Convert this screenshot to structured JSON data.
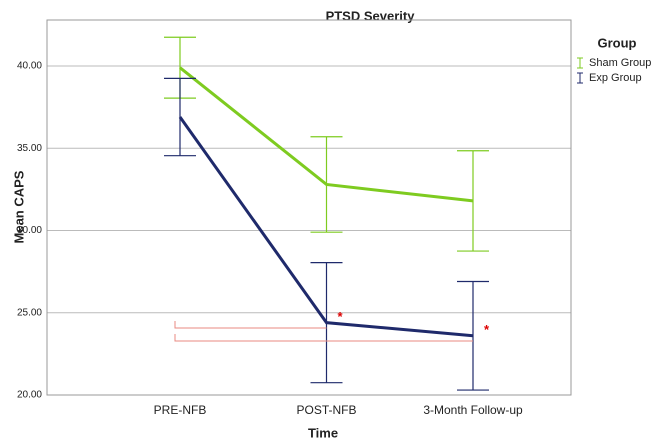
{
  "chart_data": {
    "type": "line",
    "title": "PTSD Severity",
    "xlabel": "Time",
    "ylabel": "Mean CAPS",
    "categories": [
      "PRE-NFB",
      "POST-NFB",
      "3-Month Follow-up"
    ],
    "series": [
      {
        "name": "Sham Group",
        "color": "#7ecb20",
        "values": [
          39.9,
          32.8,
          31.8
        ],
        "errors": [
          1.85,
          2.9,
          3.05
        ]
      },
      {
        "name": "Exp Group",
        "color": "#1f2a6b",
        "values": [
          36.9,
          24.4,
          23.6
        ],
        "errors": [
          2.35,
          3.65,
          3.3
        ]
      }
    ],
    "legend_title": "Group",
    "annotations": [
      "*",
      "*"
    ],
    "ylim": [
      20,
      42.8
    ],
    "yticks": [
      {
        "value": 20,
        "label": "20.00"
      },
      {
        "value": 25,
        "label": "25.00"
      },
      {
        "value": 30,
        "label": "30.00"
      },
      {
        "value": 35,
        "label": "35.00"
      },
      {
        "value": 40,
        "label": "40.00"
      }
    ],
    "grid": true
  }
}
